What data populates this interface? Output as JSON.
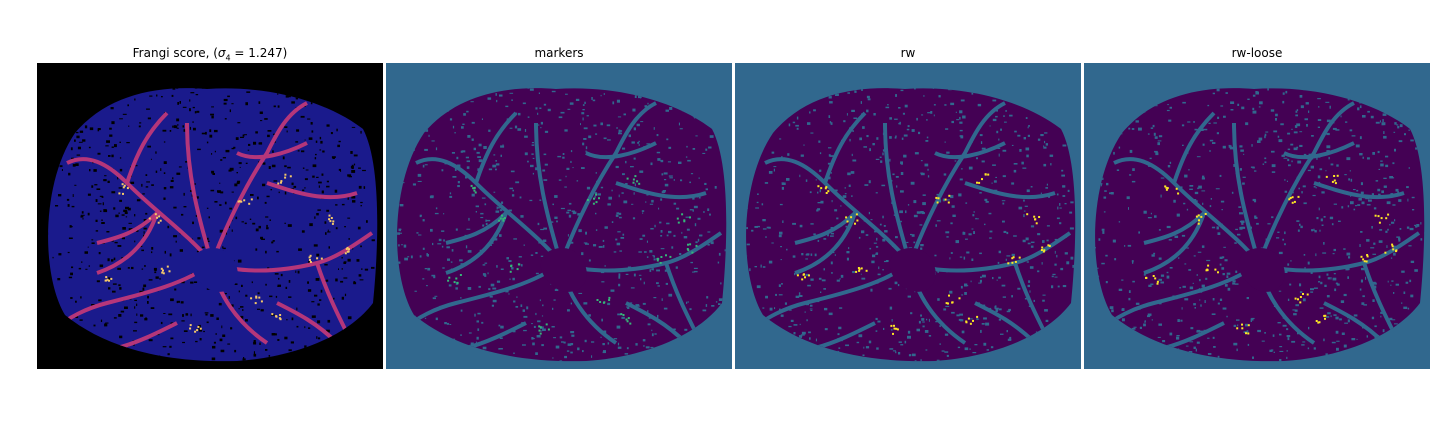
{
  "figure": {
    "panels": [
      {
        "id": "frangi",
        "title_text": "Frangi score, (",
        "title_math_symbol": "σ",
        "title_math_sub": "4",
        "title_math_rest": " = 1.247)",
        "background": "#000000",
        "disc": "#1a1a8c",
        "speckle": "#000000",
        "vessel": "#b5367a",
        "highlight": "#f5c969"
      },
      {
        "id": "markers",
        "title_text": "markers",
        "background": "#31688e",
        "disc": "#440154",
        "speckle": "#31688e",
        "vessel": "#31688e",
        "highlight": "#35b779"
      },
      {
        "id": "rw",
        "title_text": "rw",
        "background": "#31688e",
        "disc": "#440154",
        "speckle": "#31688e",
        "vessel": "#31688e",
        "highlight": "#fde725"
      },
      {
        "id": "rw-loose",
        "title_text": "rw-loose",
        "background": "#31688e",
        "disc": "#440154",
        "speckle": "#31688e",
        "vessel": "#31688e",
        "highlight": "#fde725"
      }
    ]
  }
}
